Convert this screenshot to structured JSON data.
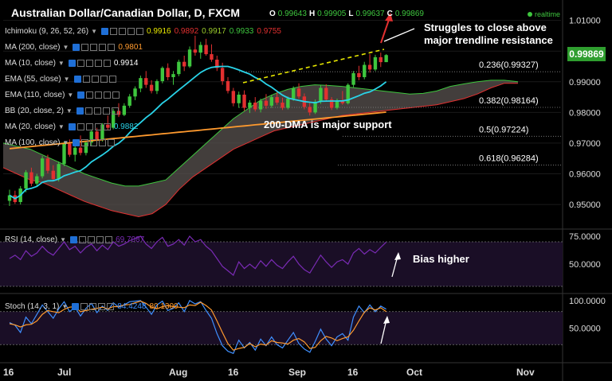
{
  "header": {
    "title": "Australian Dollar/Canadian Dollar, D, FXCM",
    "ohlc": [
      {
        "k": "O",
        "v": "0.99643"
      },
      {
        "k": "H",
        "v": "0.99905"
      },
      {
        "k": "L",
        "v": "0.99637"
      },
      {
        "k": "C",
        "v": "0.99869"
      }
    ],
    "realtime": "realtime",
    "last_price": "0.99869"
  },
  "indicators": [
    {
      "label": "Ichimoku (9, 26, 52, 26)",
      "values": [
        {
          "v": "0.9916",
          "c": "#e8e800"
        },
        {
          "v": "0.9892",
          "c": "#e23030"
        },
        {
          "v": "0.9917",
          "c": "#9ccc2c"
        },
        {
          "v": "0.9933",
          "c": "#3ec63e"
        },
        {
          "v": "0.9755",
          "c": "#e23030"
        }
      ]
    },
    {
      "label": "MA (200, close)",
      "values": [
        {
          "v": "0.9801",
          "c": "#ff9a2e"
        }
      ]
    },
    {
      "label": "MA (10, close)",
      "values": [
        {
          "v": "0.9914",
          "c": "#ffffff"
        }
      ]
    },
    {
      "label": "EMA (55, close)",
      "values": []
    },
    {
      "label": "EMA (110, close)",
      "values": []
    },
    {
      "label": "BB (20, close, 2)",
      "values": []
    },
    {
      "label": "MA (20, close)",
      "values": [
        {
          "v": "0.9882",
          "c": "#29d3e8"
        }
      ]
    },
    {
      "label": "MA (100, close)",
      "values": []
    }
  ],
  "rsi_legend": {
    "label": "RSI (14, close)",
    "value": "69.7087"
  },
  "stoch_legend": {
    "label": "Stoch (14, 3, 1)",
    "values": [
      {
        "v": "84.4248",
        "c": "#3f8fff"
      },
      {
        "v": "80.1300",
        "c": "#ff9a2e"
      }
    ]
  },
  "annotations": {
    "resistance": "Struggles to close above\nmajor trendline resistance",
    "support": "200-DMA is major support",
    "bias": "Bias higher"
  },
  "colors": {
    "up": "#3ec63e",
    "down": "#e23030",
    "cloud": "#5a5350",
    "ma20": "#29d3e8",
    "ma200": "#ff9a2e",
    "tenkan": "#e8e800",
    "rsi": "#7a2bb5",
    "stoch_k": "#3f8fff",
    "stoch_d": "#ff9a2e"
  },
  "chart_data": [
    {
      "type": "candlestick",
      "x_ticks": [
        "16",
        "Jul",
        "Aug",
        "16",
        "Sep",
        "16",
        "Oct",
        "Nov"
      ],
      "ylim": [
        0.9425,
        1.0125
      ],
      "y_ticks": [
        "1.01000",
        "1.00000",
        "0.99000",
        "0.98000",
        "0.97000",
        "0.96000",
        "0.95000"
      ],
      "candles": [
        [
          0.9512,
          0.9548,
          0.9495,
          0.953
        ],
        [
          0.953,
          0.9545,
          0.9502,
          0.9508
        ],
        [
          0.9508,
          0.956,
          0.95,
          0.9552
        ],
        [
          0.9552,
          0.9612,
          0.954,
          0.9605
        ],
        [
          0.9605,
          0.962,
          0.956,
          0.9568
        ],
        [
          0.9568,
          0.96,
          0.9558,
          0.9592
        ],
        [
          0.9592,
          0.9658,
          0.9585,
          0.965
        ],
        [
          0.965,
          0.9662,
          0.9601,
          0.961
        ],
        [
          0.961,
          0.9628,
          0.9578,
          0.9583
        ],
        [
          0.9583,
          0.964,
          0.9575,
          0.9632
        ],
        [
          0.9632,
          0.9705,
          0.9625,
          0.9698
        ],
        [
          0.9698,
          0.9712,
          0.9655,
          0.9662
        ],
        [
          0.9662,
          0.969,
          0.964,
          0.9685
        ],
        [
          0.9685,
          0.9725,
          0.966,
          0.9668
        ],
        [
          0.9668,
          0.9708,
          0.966,
          0.9702
        ],
        [
          0.9702,
          0.9745,
          0.969,
          0.9738
        ],
        [
          0.9738,
          0.975,
          0.97,
          0.9712
        ],
        [
          0.9712,
          0.9765,
          0.9705,
          0.976
        ],
        [
          0.976,
          0.979,
          0.9742,
          0.975
        ],
        [
          0.975,
          0.9812,
          0.9745,
          0.9805
        ],
        [
          0.9805,
          0.983,
          0.9785,
          0.9792
        ],
        [
          0.9792,
          0.983,
          0.9788,
          0.9822
        ],
        [
          0.9822,
          0.986,
          0.9815,
          0.9852
        ],
        [
          0.9852,
          0.9885,
          0.984,
          0.9878
        ],
        [
          0.9878,
          0.992,
          0.9866,
          0.9912
        ],
        [
          0.9912,
          0.9935,
          0.988,
          0.989
        ],
        [
          0.989,
          0.9905,
          0.9862,
          0.987
        ],
        [
          0.987,
          0.9908,
          0.986,
          0.9902
        ],
        [
          0.9902,
          0.995,
          0.9895,
          0.9945
        ],
        [
          0.9945,
          0.996,
          0.9905,
          0.9915
        ],
        [
          0.9915,
          0.9935,
          0.989,
          0.9925
        ],
        [
          0.9925,
          0.9972,
          0.9918,
          0.9965
        ],
        [
          0.9965,
          0.9985,
          0.9935,
          0.995
        ],
        [
          0.995,
          1.0015,
          0.9945,
          1.0005
        ],
        [
          1.0005,
          1.005,
          0.9985,
          0.9995
        ],
        [
          0.9995,
          1.003,
          0.9975,
          1.002
        ],
        [
          1.002,
          1.004,
          0.9985,
          0.999
        ],
        [
          0.999,
          1.0022,
          0.9965,
          0.9972
        ],
        [
          0.9972,
          0.9985,
          0.9935,
          0.9945
        ],
        [
          0.9945,
          0.9962,
          0.989,
          0.9902
        ],
        [
          0.9902,
          0.9915,
          0.9862,
          0.987
        ],
        [
          0.987,
          0.988,
          0.982,
          0.983
        ],
        [
          0.983,
          0.9868,
          0.9815,
          0.9858
        ],
        [
          0.9858,
          0.9872,
          0.9805,
          0.9815
        ],
        [
          0.9815,
          0.984,
          0.9798,
          0.9832
        ],
        [
          0.9832,
          0.985,
          0.9803,
          0.981
        ],
        [
          0.981,
          0.9845,
          0.98,
          0.9838
        ],
        [
          0.9838,
          0.986,
          0.9812,
          0.9822
        ],
        [
          0.9822,
          0.9858,
          0.9815,
          0.985
        ],
        [
          0.985,
          0.987,
          0.9825,
          0.9832
        ],
        [
          0.9832,
          0.9848,
          0.9808,
          0.9815
        ],
        [
          0.9815,
          0.9852,
          0.981,
          0.9845
        ],
        [
          0.9845,
          0.9885,
          0.9838,
          0.9878
        ],
        [
          0.9878,
          0.9895,
          0.9845,
          0.9852
        ],
        [
          0.9852,
          0.9862,
          0.981,
          0.9818
        ],
        [
          0.9818,
          0.9832,
          0.979,
          0.98
        ],
        [
          0.98,
          0.9842,
          0.9795,
          0.9835
        ],
        [
          0.9835,
          0.989,
          0.9828,
          0.988
        ],
        [
          0.988,
          0.9892,
          0.9835,
          0.9842
        ],
        [
          0.9842,
          0.985,
          0.9808,
          0.9815
        ],
        [
          0.9815,
          0.9845,
          0.981,
          0.9838
        ],
        [
          0.9838,
          0.987,
          0.9825,
          0.983
        ],
        [
          0.983,
          0.9895,
          0.9826,
          0.989
        ],
        [
          0.989,
          0.9935,
          0.9882,
          0.9928
        ],
        [
          0.9928,
          0.9952,
          0.9905,
          0.9915
        ],
        [
          0.9915,
          0.9965,
          0.9908,
          0.9955
        ],
        [
          0.9955,
          0.999,
          0.993,
          0.994
        ],
        [
          0.994,
          0.9988,
          0.9935,
          0.998
        ],
        [
          0.998,
          0.9995,
          0.9948,
          0.9964
        ],
        [
          0.9964,
          0.999,
          0.9964,
          0.9987
        ]
      ],
      "fib_levels": [
        {
          "label": "0.236(0.99327)",
          "y": 0.99327
        },
        {
          "label": "0.382(0.98164)",
          "y": 0.98164
        },
        {
          "label": "0.5(0.97224)",
          "y": 0.97224
        },
        {
          "label": "0.618(0.96284)",
          "y": 0.96284
        }
      ]
    },
    {
      "type": "line",
      "name": "RSI (14, close)",
      "ylim": [
        25,
        80
      ],
      "y_ticks": [
        "75.0000",
        "50.0000"
      ],
      "values": [
        55,
        58,
        54,
        62,
        57,
        60,
        66,
        61,
        58,
        64,
        70,
        63,
        66,
        60,
        65,
        68,
        62,
        67,
        63,
        70,
        66,
        68,
        71,
        73,
        75,
        68,
        64,
        70,
        74,
        66,
        68,
        72,
        67,
        75,
        70,
        72,
        66,
        62,
        55,
        48,
        44,
        40,
        52,
        46,
        50,
        46,
        53,
        48,
        54,
        49,
        46,
        52,
        57,
        50,
        45,
        42,
        50,
        58,
        52,
        47,
        52,
        54,
        50,
        60,
        64,
        59,
        63,
        60,
        65,
        69.7
      ]
    },
    {
      "type": "line",
      "name": "Stoch (14, 3, 1)",
      "ylim": [
        -10,
        110
      ],
      "y_ticks": [
        "100.0000",
        "50.0000"
      ],
      "k": [
        60,
        55,
        42,
        70,
        58,
        75,
        92,
        80,
        68,
        85,
        98,
        80,
        88,
        72,
        86,
        95,
        78,
        90,
        82,
        96,
        88,
        92,
        98,
        99,
        100,
        88,
        75,
        92,
        99,
        82,
        86,
        96,
        80,
        100,
        94,
        98,
        82,
        68,
        40,
        18,
        8,
        4,
        28,
        14,
        24,
        10,
        30,
        18,
        34,
        20,
        14,
        28,
        42,
        22,
        12,
        6,
        26,
        48,
        30,
        18,
        34,
        40,
        28,
        70,
        90,
        78,
        92,
        80,
        90,
        84.4
      ],
      "d": [
        58,
        56,
        52,
        56,
        57,
        63,
        75,
        82,
        80,
        78,
        84,
        88,
        89,
        80,
        82,
        84,
        86,
        88,
        85,
        89,
        89,
        92,
        93,
        96,
        99,
        95,
        88,
        85,
        89,
        91,
        89,
        88,
        87,
        92,
        91,
        97,
        91,
        83,
        63,
        42,
        22,
        10,
        13,
        15,
        22,
        16,
        21,
        19,
        27,
        24,
        23,
        21,
        28,
        31,
        25,
        13,
        15,
        27,
        35,
        32,
        27,
        31,
        34,
        46,
        63,
        79,
        87,
        83,
        87,
        80.1
      ]
    }
  ]
}
